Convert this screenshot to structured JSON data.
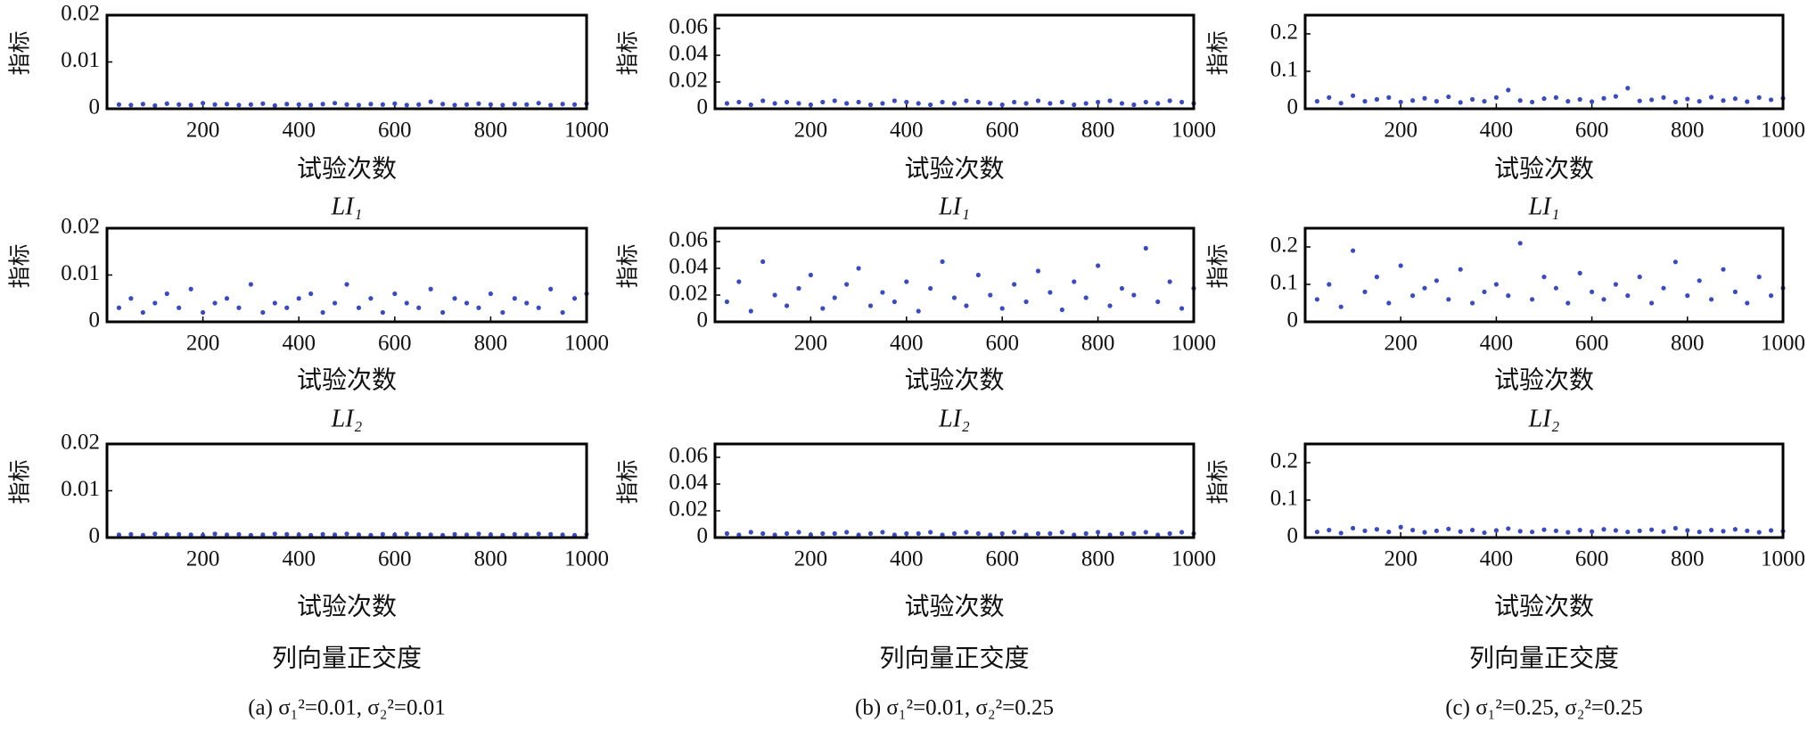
{
  "chart_data": [
    {
      "type": "scatter",
      "title": "LI₁",
      "xlabel": "试验次数",
      "ylabel": "指标",
      "color": "#3b4cb8",
      "xlim": [
        0,
        1000
      ],
      "xticks": [
        200,
        400,
        600,
        800,
        1000
      ],
      "ylim": [
        0,
        0.02
      ],
      "yticks": [
        0,
        0.01,
        0.02
      ],
      "x": [
        25,
        50,
        75,
        100,
        125,
        150,
        175,
        200,
        225,
        250,
        275,
        300,
        325,
        350,
        375,
        400,
        425,
        450,
        475,
        500,
        525,
        550,
        575,
        600,
        625,
        650,
        675,
        700,
        725,
        750,
        775,
        800,
        825,
        850,
        875,
        900,
        925,
        950,
        975,
        1000
      ],
      "values": [
        0.0009,
        0.0008,
        0.001,
        0.0007,
        0.0011,
        0.0009,
        0.0008,
        0.0012,
        0.0009,
        0.001,
        0.0008,
        0.0009,
        0.0011,
        0.0007,
        0.001,
        0.0009,
        0.0008,
        0.001,
        0.0012,
        0.0009,
        0.0008,
        0.001,
        0.0009,
        0.0011,
        0.0008,
        0.0009,
        0.0015,
        0.001,
        0.0008,
        0.0009,
        0.0011,
        0.0009,
        0.0008,
        0.001,
        0.0009,
        0.0012,
        0.0008,
        0.001,
        0.0009,
        0.0011
      ]
    },
    {
      "type": "scatter",
      "title": "LI₁",
      "xlabel": "试验次数",
      "ylabel": "指标",
      "color": "#3b4cb8",
      "xlim": [
        0,
        1000
      ],
      "xticks": [
        200,
        400,
        600,
        800,
        1000
      ],
      "ylim": [
        0,
        0.07
      ],
      "yticks": [
        0,
        0.02,
        0.04,
        0.06
      ],
      "x": [
        25,
        50,
        75,
        100,
        125,
        150,
        175,
        200,
        225,
        250,
        275,
        300,
        325,
        350,
        375,
        400,
        425,
        450,
        475,
        500,
        525,
        550,
        575,
        600,
        625,
        650,
        675,
        700,
        725,
        750,
        775,
        800,
        825,
        850,
        875,
        900,
        925,
        950,
        975,
        1000
      ],
      "values": [
        0.004,
        0.005,
        0.003,
        0.006,
        0.004,
        0.005,
        0.004,
        0.003,
        0.005,
        0.006,
        0.004,
        0.005,
        0.003,
        0.004,
        0.006,
        0.005,
        0.004,
        0.003,
        0.005,
        0.004,
        0.006,
        0.005,
        0.004,
        0.003,
        0.005,
        0.004,
        0.006,
        0.004,
        0.005,
        0.003,
        0.004,
        0.005,
        0.006,
        0.004,
        0.003,
        0.005,
        0.004,
        0.006,
        0.005,
        0.004
      ]
    },
    {
      "type": "scatter",
      "title": "LI₁",
      "xlabel": "试验次数",
      "ylabel": "指标",
      "color": "#3b4cb8",
      "xlim": [
        0,
        1000
      ],
      "xticks": [
        200,
        400,
        600,
        800,
        1000
      ],
      "ylim": [
        0,
        0.25
      ],
      "yticks": [
        0,
        0.1,
        0.2
      ],
      "x": [
        25,
        50,
        75,
        100,
        125,
        150,
        175,
        200,
        225,
        250,
        275,
        300,
        325,
        350,
        375,
        400,
        425,
        450,
        475,
        500,
        525,
        550,
        575,
        600,
        625,
        650,
        675,
        700,
        725,
        750,
        775,
        800,
        825,
        850,
        875,
        900,
        925,
        950,
        975,
        1000
      ],
      "values": [
        0.02,
        0.03,
        0.015,
        0.035,
        0.02,
        0.025,
        0.03,
        0.018,
        0.022,
        0.028,
        0.02,
        0.032,
        0.017,
        0.025,
        0.02,
        0.03,
        0.05,
        0.022,
        0.018,
        0.027,
        0.03,
        0.02,
        0.025,
        0.019,
        0.028,
        0.033,
        0.055,
        0.021,
        0.024,
        0.03,
        0.018,
        0.026,
        0.02,
        0.031,
        0.022,
        0.027,
        0.019,
        0.03,
        0.024,
        0.028
      ]
    },
    {
      "type": "scatter",
      "title": "LI₂",
      "xlabel": "试验次数",
      "ylabel": "指标",
      "color": "#3b4cb8",
      "xlim": [
        0,
        1000
      ],
      "xticks": [
        200,
        400,
        600,
        800,
        1000
      ],
      "ylim": [
        0,
        0.02
      ],
      "yticks": [
        0,
        0.01,
        0.02
      ],
      "x": [
        25,
        50,
        75,
        100,
        125,
        150,
        175,
        200,
        225,
        250,
        275,
        300,
        325,
        350,
        375,
        400,
        425,
        450,
        475,
        500,
        525,
        550,
        575,
        600,
        625,
        650,
        675,
        700,
        725,
        750,
        775,
        800,
        825,
        850,
        875,
        900,
        925,
        950,
        975,
        1000
      ],
      "values": [
        0.003,
        0.005,
        0.002,
        0.004,
        0.006,
        0.003,
        0.007,
        0.002,
        0.004,
        0.005,
        0.003,
        0.008,
        0.002,
        0.004,
        0.003,
        0.005,
        0.006,
        0.002,
        0.004,
        0.008,
        0.003,
        0.005,
        0.002,
        0.006,
        0.004,
        0.003,
        0.007,
        0.002,
        0.005,
        0.004,
        0.003,
        0.006,
        0.002,
        0.005,
        0.004,
        0.003,
        0.007,
        0.002,
        0.005,
        0.006
      ]
    },
    {
      "type": "scatter",
      "title": "LI₂",
      "xlabel": "试验次数",
      "ylabel": "指标",
      "color": "#3b4cb8",
      "xlim": [
        0,
        1000
      ],
      "xticks": [
        200,
        400,
        600,
        800,
        1000
      ],
      "ylim": [
        0,
        0.07
      ],
      "yticks": [
        0,
        0.02,
        0.04,
        0.06
      ],
      "x": [
        25,
        50,
        75,
        100,
        125,
        150,
        175,
        200,
        225,
        250,
        275,
        300,
        325,
        350,
        375,
        400,
        425,
        450,
        475,
        500,
        525,
        550,
        575,
        600,
        625,
        650,
        675,
        700,
        725,
        750,
        775,
        800,
        825,
        850,
        875,
        900,
        925,
        950,
        975,
        1000
      ],
      "values": [
        0.015,
        0.03,
        0.008,
        0.045,
        0.02,
        0.012,
        0.025,
        0.035,
        0.01,
        0.018,
        0.028,
        0.04,
        0.012,
        0.022,
        0.015,
        0.03,
        0.008,
        0.025,
        0.045,
        0.018,
        0.012,
        0.035,
        0.02,
        0.01,
        0.028,
        0.015,
        0.038,
        0.022,
        0.009,
        0.03,
        0.018,
        0.042,
        0.012,
        0.025,
        0.02,
        0.055,
        0.015,
        0.03,
        0.01,
        0.025
      ]
    },
    {
      "type": "scatter",
      "title": "LI₂",
      "xlabel": "试验次数",
      "ylabel": "指标",
      "color": "#3b4cb8",
      "xlim": [
        0,
        1000
      ],
      "xticks": [
        200,
        400,
        600,
        800,
        1000
      ],
      "ylim": [
        0,
        0.25
      ],
      "yticks": [
        0,
        0.1,
        0.2
      ],
      "x": [
        25,
        50,
        75,
        100,
        125,
        150,
        175,
        200,
        225,
        250,
        275,
        300,
        325,
        350,
        375,
        400,
        425,
        450,
        475,
        500,
        525,
        550,
        575,
        600,
        625,
        650,
        675,
        700,
        725,
        750,
        775,
        800,
        825,
        850,
        875,
        900,
        925,
        950,
        975,
        1000
      ],
      "values": [
        0.06,
        0.1,
        0.04,
        0.19,
        0.08,
        0.12,
        0.05,
        0.15,
        0.07,
        0.09,
        0.11,
        0.06,
        0.14,
        0.05,
        0.08,
        0.1,
        0.07,
        0.21,
        0.06,
        0.12,
        0.09,
        0.05,
        0.13,
        0.08,
        0.06,
        0.1,
        0.07,
        0.12,
        0.05,
        0.09,
        0.16,
        0.07,
        0.11,
        0.06,
        0.14,
        0.08,
        0.05,
        0.12,
        0.07,
        0.09
      ]
    },
    {
      "type": "scatter",
      "title": "列向量正交度",
      "xlabel": "试验次数",
      "ylabel": "指标",
      "color": "#3b4cb8",
      "xlim": [
        0,
        1000
      ],
      "xticks": [
        200,
        400,
        600,
        800,
        1000
      ],
      "ylim": [
        0,
        0.02
      ],
      "yticks": [
        0,
        0.01,
        0.02
      ],
      "x": [
        25,
        50,
        75,
        100,
        125,
        150,
        175,
        200,
        225,
        250,
        275,
        300,
        325,
        350,
        375,
        400,
        425,
        450,
        475,
        500,
        525,
        550,
        575,
        600,
        625,
        650,
        675,
        700,
        725,
        750,
        775,
        800,
        825,
        850,
        875,
        900,
        925,
        950,
        975,
        1000
      ],
      "values": [
        0.0006,
        0.0007,
        0.0005,
        0.0008,
        0.0006,
        0.0007,
        0.0006,
        0.0005,
        0.0008,
        0.0006,
        0.0007,
        0.0005,
        0.0006,
        0.0008,
        0.0007,
        0.0006,
        0.0005,
        0.0007,
        0.0006,
        0.0008,
        0.0006,
        0.0005,
        0.0007,
        0.0006,
        0.0008,
        0.0007,
        0.0006,
        0.0005,
        0.0007,
        0.0006,
        0.0008,
        0.0006,
        0.0005,
        0.0007,
        0.0006,
        0.0008,
        0.0007,
        0.0006,
        0.0005,
        0.0007
      ]
    },
    {
      "type": "scatter",
      "title": "列向量正交度",
      "xlabel": "试验次数",
      "ylabel": "指标",
      "color": "#3b4cb8",
      "xlim": [
        0,
        1000
      ],
      "xticks": [
        200,
        400,
        600,
        800,
        1000
      ],
      "ylim": [
        0,
        0.07
      ],
      "yticks": [
        0,
        0.02,
        0.04,
        0.06
      ],
      "x": [
        25,
        50,
        75,
        100,
        125,
        150,
        175,
        200,
        225,
        250,
        275,
        300,
        325,
        350,
        375,
        400,
        425,
        450,
        475,
        500,
        525,
        550,
        575,
        600,
        625,
        650,
        675,
        700,
        725,
        750,
        775,
        800,
        825,
        850,
        875,
        900,
        925,
        950,
        975,
        1000
      ],
      "values": [
        0.003,
        0.002,
        0.004,
        0.003,
        0.002,
        0.003,
        0.004,
        0.002,
        0.003,
        0.003,
        0.004,
        0.002,
        0.003,
        0.004,
        0.002,
        0.003,
        0.003,
        0.004,
        0.002,
        0.003,
        0.004,
        0.003,
        0.002,
        0.003,
        0.004,
        0.002,
        0.003,
        0.003,
        0.004,
        0.002,
        0.003,
        0.004,
        0.002,
        0.003,
        0.003,
        0.004,
        0.002,
        0.003,
        0.004,
        0.003
      ]
    },
    {
      "type": "scatter",
      "title": "列向量正交度",
      "xlabel": "试验次数",
      "ylabel": "指标",
      "color": "#3b4cb8",
      "xlim": [
        0,
        1000
      ],
      "xticks": [
        200,
        400,
        600,
        800,
        1000
      ],
      "ylim": [
        0,
        0.25
      ],
      "yticks": [
        0,
        0.1,
        0.2
      ],
      "x": [
        25,
        50,
        75,
        100,
        125,
        150,
        175,
        200,
        225,
        250,
        275,
        300,
        325,
        350,
        375,
        400,
        425,
        450,
        475,
        500,
        525,
        550,
        575,
        600,
        625,
        650,
        675,
        700,
        725,
        750,
        775,
        800,
        825,
        850,
        875,
        900,
        925,
        950,
        975,
        1000
      ],
      "values": [
        0.015,
        0.02,
        0.012,
        0.025,
        0.018,
        0.022,
        0.015,
        0.028,
        0.02,
        0.014,
        0.018,
        0.023,
        0.016,
        0.02,
        0.013,
        0.019,
        0.024,
        0.017,
        0.015,
        0.021,
        0.018,
        0.014,
        0.02,
        0.016,
        0.022,
        0.019,
        0.015,
        0.018,
        0.021,
        0.016,
        0.025,
        0.019,
        0.015,
        0.02,
        0.017,
        0.022,
        0.018,
        0.014,
        0.019,
        0.017
      ]
    }
  ],
  "captions": [
    "(a) σ₁²=0.01, σ₂²=0.01",
    "(b) σ₁²=0.01, σ₂²=0.25",
    "(c) σ₁²=0.25, σ₂²=0.25"
  ]
}
